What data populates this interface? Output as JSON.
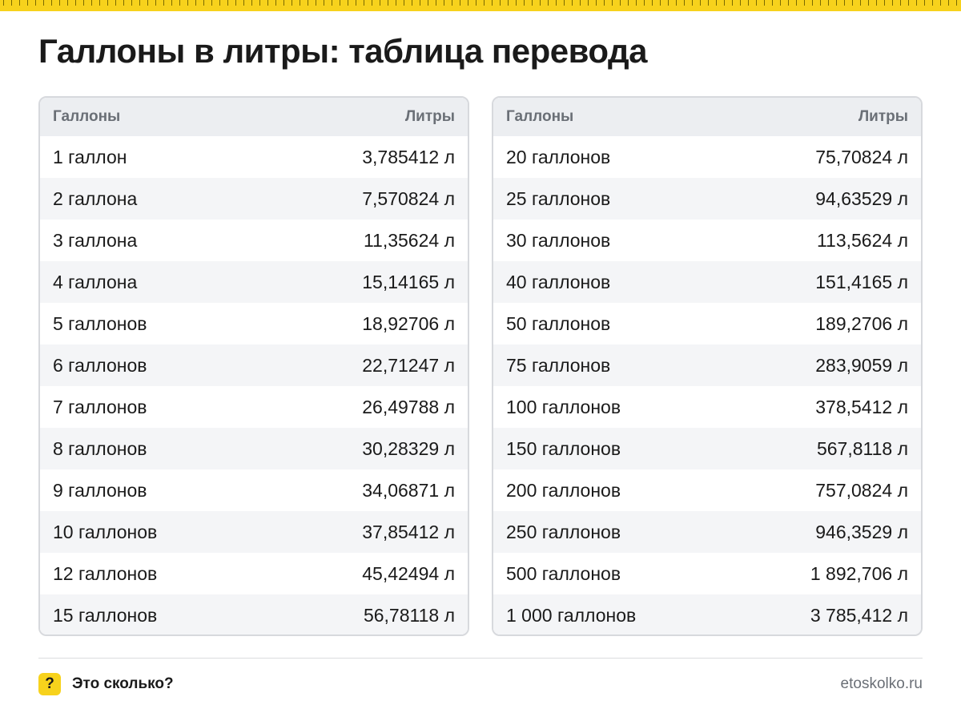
{
  "title": "Галлоны в литры: таблица перевода",
  "colors": {
    "accent": "#f7d21c",
    "header_bg": "#eceef1",
    "stripe": "#f4f5f7"
  },
  "tables": [
    {
      "header": {
        "left": "Галлоны",
        "right": "Литры"
      },
      "rows": [
        {
          "gallons": "1 галлон",
          "liters": "3,785412 л"
        },
        {
          "gallons": "2 галлона",
          "liters": "7,570824 л"
        },
        {
          "gallons": "3 галлона",
          "liters": "11,35624 л"
        },
        {
          "gallons": "4 галлона",
          "liters": "15,14165 л"
        },
        {
          "gallons": "5 галлонов",
          "liters": "18,92706 л"
        },
        {
          "gallons": "6 галлонов",
          "liters": "22,71247 л"
        },
        {
          "gallons": "7 галлонов",
          "liters": "26,49788 л"
        },
        {
          "gallons": "8 галлонов",
          "liters": "30,28329 л"
        },
        {
          "gallons": "9 галлонов",
          "liters": "34,06871 л"
        },
        {
          "gallons": "10 галлонов",
          "liters": "37,85412 л"
        },
        {
          "gallons": "12 галлонов",
          "liters": "45,42494 л"
        },
        {
          "gallons": "15 галлонов",
          "liters": "56,78118 л"
        }
      ]
    },
    {
      "header": {
        "left": "Галлоны",
        "right": "Литры"
      },
      "rows": [
        {
          "gallons": "20 галлонов",
          "liters": "75,70824 л"
        },
        {
          "gallons": "25 галлонов",
          "liters": "94,63529 л"
        },
        {
          "gallons": "30 галлонов",
          "liters": "113,5624 л"
        },
        {
          "gallons": "40 галлонов",
          "liters": "151,4165 л"
        },
        {
          "gallons": "50 галлонов",
          "liters": "189,2706 л"
        },
        {
          "gallons": "75 галлонов",
          "liters": "283,9059 л"
        },
        {
          "gallons": "100 галлонов",
          "liters": "378,5412 л"
        },
        {
          "gallons": "150 галлонов",
          "liters": "567,8118 л"
        },
        {
          "gallons": "200 галлонов",
          "liters": "757,0824 л"
        },
        {
          "gallons": "250 галлонов",
          "liters": "946,3529 л"
        },
        {
          "gallons": "500 галлонов",
          "liters": "1 892,706 л"
        },
        {
          "gallons": "1 000 галлонов",
          "liters": "3 785,412 л"
        }
      ]
    }
  ],
  "footer": {
    "badge_icon": "question-mark-icon",
    "badge_symbol": "?",
    "brand": "Это сколько?",
    "site": "etoskolko.ru"
  }
}
